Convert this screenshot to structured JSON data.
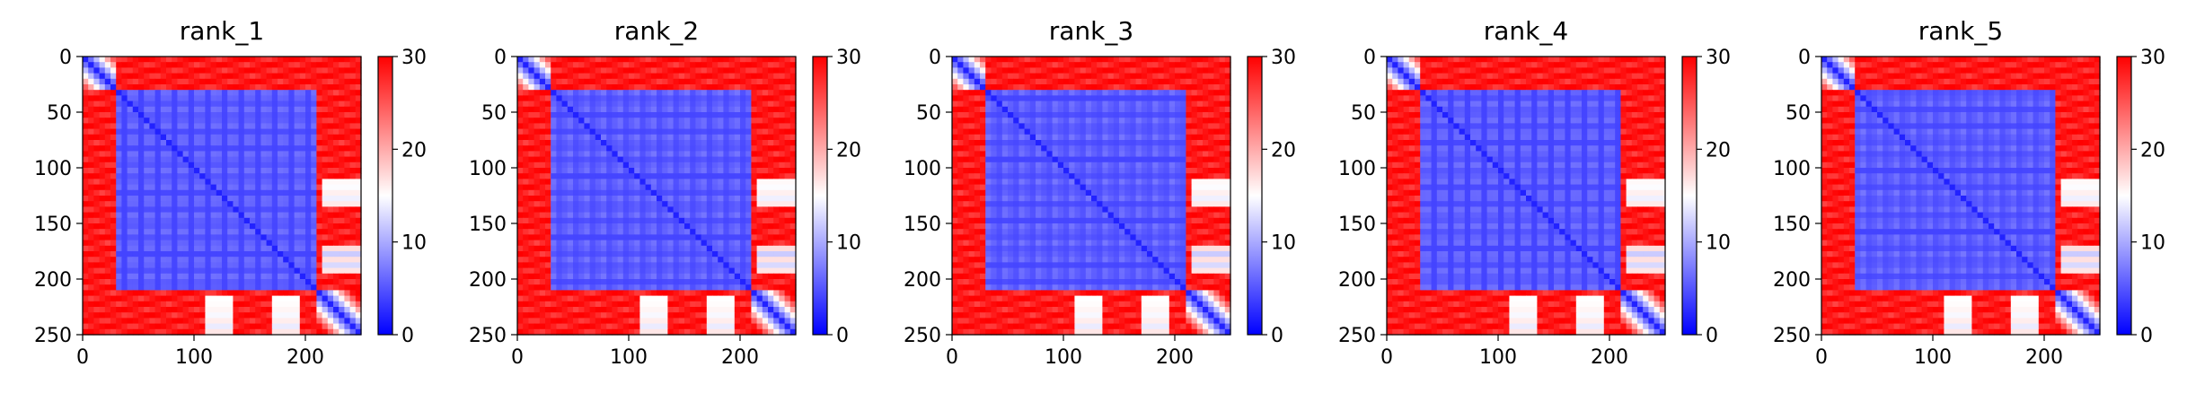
{
  "chart_data": [
    {
      "type": "heatmap",
      "title": "rank_1",
      "xlabel": "",
      "ylabel": "",
      "xlim": [
        0,
        250
      ],
      "ylim": [
        250,
        0
      ],
      "xticks": [
        "0",
        "100",
        "200"
      ],
      "yticks": [
        "0",
        "50",
        "100",
        "150",
        "200",
        "250"
      ],
      "colorbar": {
        "range": [
          0,
          30
        ],
        "ticks": [
          "0",
          "10",
          "20",
          "30"
        ],
        "colormap": "bwr",
        "low_color": "#0000ff",
        "mid_color": "#ffffff",
        "high_color": "#ff0000"
      },
      "grid": false,
      "matrix_description": null
    },
    {
      "type": "heatmap",
      "title": "rank_2",
      "xlabel": "",
      "ylabel": "",
      "xlim": [
        0,
        250
      ],
      "ylim": [
        250,
        0
      ],
      "xticks": [
        "0",
        "100",
        "200"
      ],
      "yticks": [
        "0",
        "50",
        "100",
        "150",
        "200",
        "250"
      ],
      "colorbar": {
        "range": [
          0,
          30
        ],
        "ticks": [
          "0",
          "10",
          "20",
          "30"
        ],
        "colormap": "bwr",
        "low_color": "#0000ff",
        "mid_color": "#ffffff",
        "high_color": "#ff0000"
      },
      "grid": false
    },
    {
      "type": "heatmap",
      "title": "rank_3",
      "xlabel": "",
      "ylabel": "",
      "xlim": [
        0,
        250
      ],
      "ylim": [
        250,
        0
      ],
      "xticks": [
        "0",
        "100",
        "200"
      ],
      "yticks": [
        "0",
        "50",
        "100",
        "150",
        "200",
        "250"
      ],
      "colorbar": {
        "range": [
          0,
          30
        ],
        "ticks": [
          "0",
          "10",
          "20",
          "30"
        ],
        "colormap": "bwr",
        "low_color": "#0000ff",
        "mid_color": "#ffffff",
        "high_color": "#ff0000"
      },
      "grid": false
    },
    {
      "type": "heatmap",
      "title": "rank_4",
      "xlabel": "",
      "ylabel": "",
      "xlim": [
        0,
        250
      ],
      "ylim": [
        250,
        0
      ],
      "xticks": [
        "0",
        "100",
        "200"
      ],
      "yticks": [
        "0",
        "50",
        "100",
        "150",
        "200",
        "250"
      ],
      "colorbar": {
        "range": [
          0,
          30
        ],
        "ticks": [
          "0",
          "10",
          "20",
          "30"
        ],
        "colormap": "bwr",
        "low_color": "#0000ff",
        "mid_color": "#ffffff",
        "high_color": "#ff0000"
      },
      "grid": false
    },
    {
      "type": "heatmap",
      "title": "rank_5",
      "xlabel": "",
      "ylabel": "",
      "xlim": [
        0,
        250
      ],
      "ylim": [
        250,
        0
      ],
      "xticks": [
        "0",
        "100",
        "200"
      ],
      "yticks": [
        "0",
        "50",
        "100",
        "150",
        "200",
        "250"
      ],
      "colorbar": {
        "range": [
          0,
          30
        ],
        "ticks": [
          "0",
          "10",
          "20",
          "30"
        ],
        "colormap": "bwr",
        "low_color": "#0000ff",
        "mid_color": "#ffffff",
        "high_color": "#ff0000"
      },
      "grid": false
    }
  ]
}
